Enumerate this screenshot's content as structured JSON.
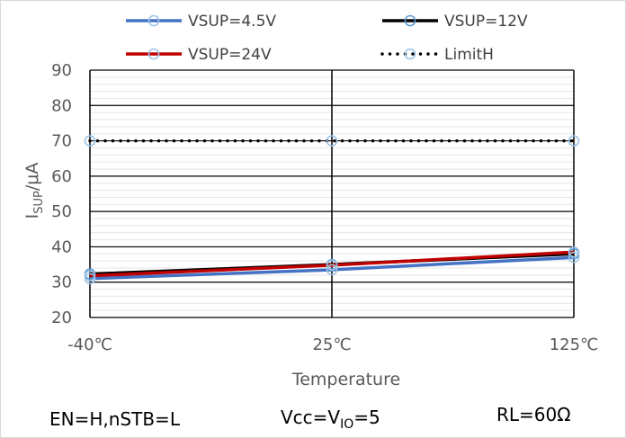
{
  "chart_data": {
    "type": "line",
    "categories": [
      "-40℃",
      "25℃",
      "125℃"
    ],
    "series": [
      {
        "name": "VSUP=4.5V",
        "values": [
          31,
          33.5,
          37
        ],
        "color": "#4472C4",
        "marker": "#9DC3E6"
      },
      {
        "name": "VSUP=12V",
        "values": [
          32.3,
          35,
          38
        ],
        "color": "#000000",
        "marker": "#5B9BD5"
      },
      {
        "name": "VSUP=24V",
        "values": [
          31.8,
          34.8,
          38.5
        ],
        "color": "#C00000",
        "marker": "#9DC3E6"
      },
      {
        "name": "LimitH",
        "values": [
          70,
          70,
          70
        ],
        "color": "#000000",
        "marker": "#9DC3E6",
        "style": "dotted"
      }
    ],
    "ylim": [
      20,
      90
    ],
    "yticks": [
      20,
      30,
      40,
      50,
      60,
      70,
      80,
      90
    ],
    "ylabel": {
      "main": "I",
      "sub": "SUP",
      "rest": "/μA"
    },
    "xlabel": "Temperature",
    "legend_position": "top",
    "grid": true
  },
  "notes": {
    "left": "EN=H,nSTB=L",
    "middle": {
      "main": "Vcc=V",
      "sub": "IO",
      "rest": "=5"
    },
    "right": "RL=60Ω"
  }
}
